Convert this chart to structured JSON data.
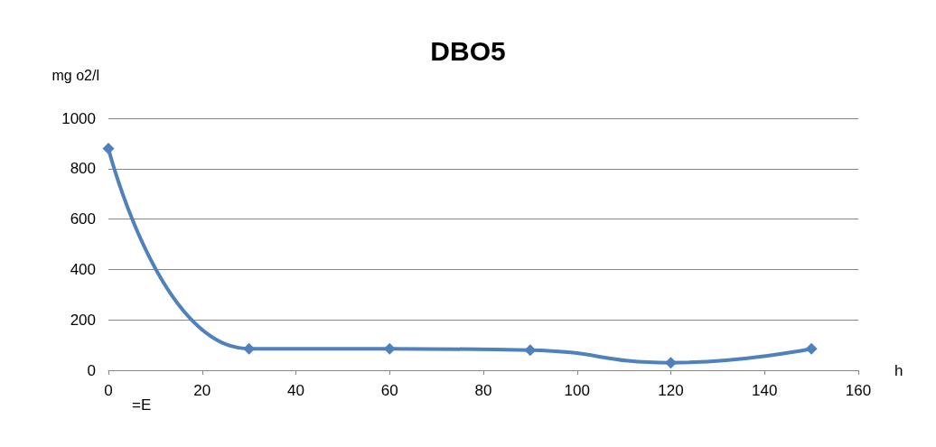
{
  "chart_data": {
    "type": "line",
    "title": "DBO5",
    "xlabel": "h",
    "ylabel": "mg o2/l",
    "annotations": [
      "=E"
    ],
    "x": [
      0,
      30,
      60,
      90,
      120,
      150
    ],
    "series": [
      {
        "color": "#4f81bd",
        "values": [
          880,
          85,
          85,
          80,
          30,
          85
        ]
      }
    ],
    "xlim": [
      0,
      160
    ],
    "xticks": [
      0,
      20,
      40,
      60,
      80,
      100,
      120,
      140,
      160
    ],
    "ylim": [
      0,
      1000
    ],
    "yticks": [
      0,
      200,
      400,
      600,
      800,
      1000
    ],
    "grid": "y",
    "marker": "diamond",
    "line_style": "solid"
  }
}
